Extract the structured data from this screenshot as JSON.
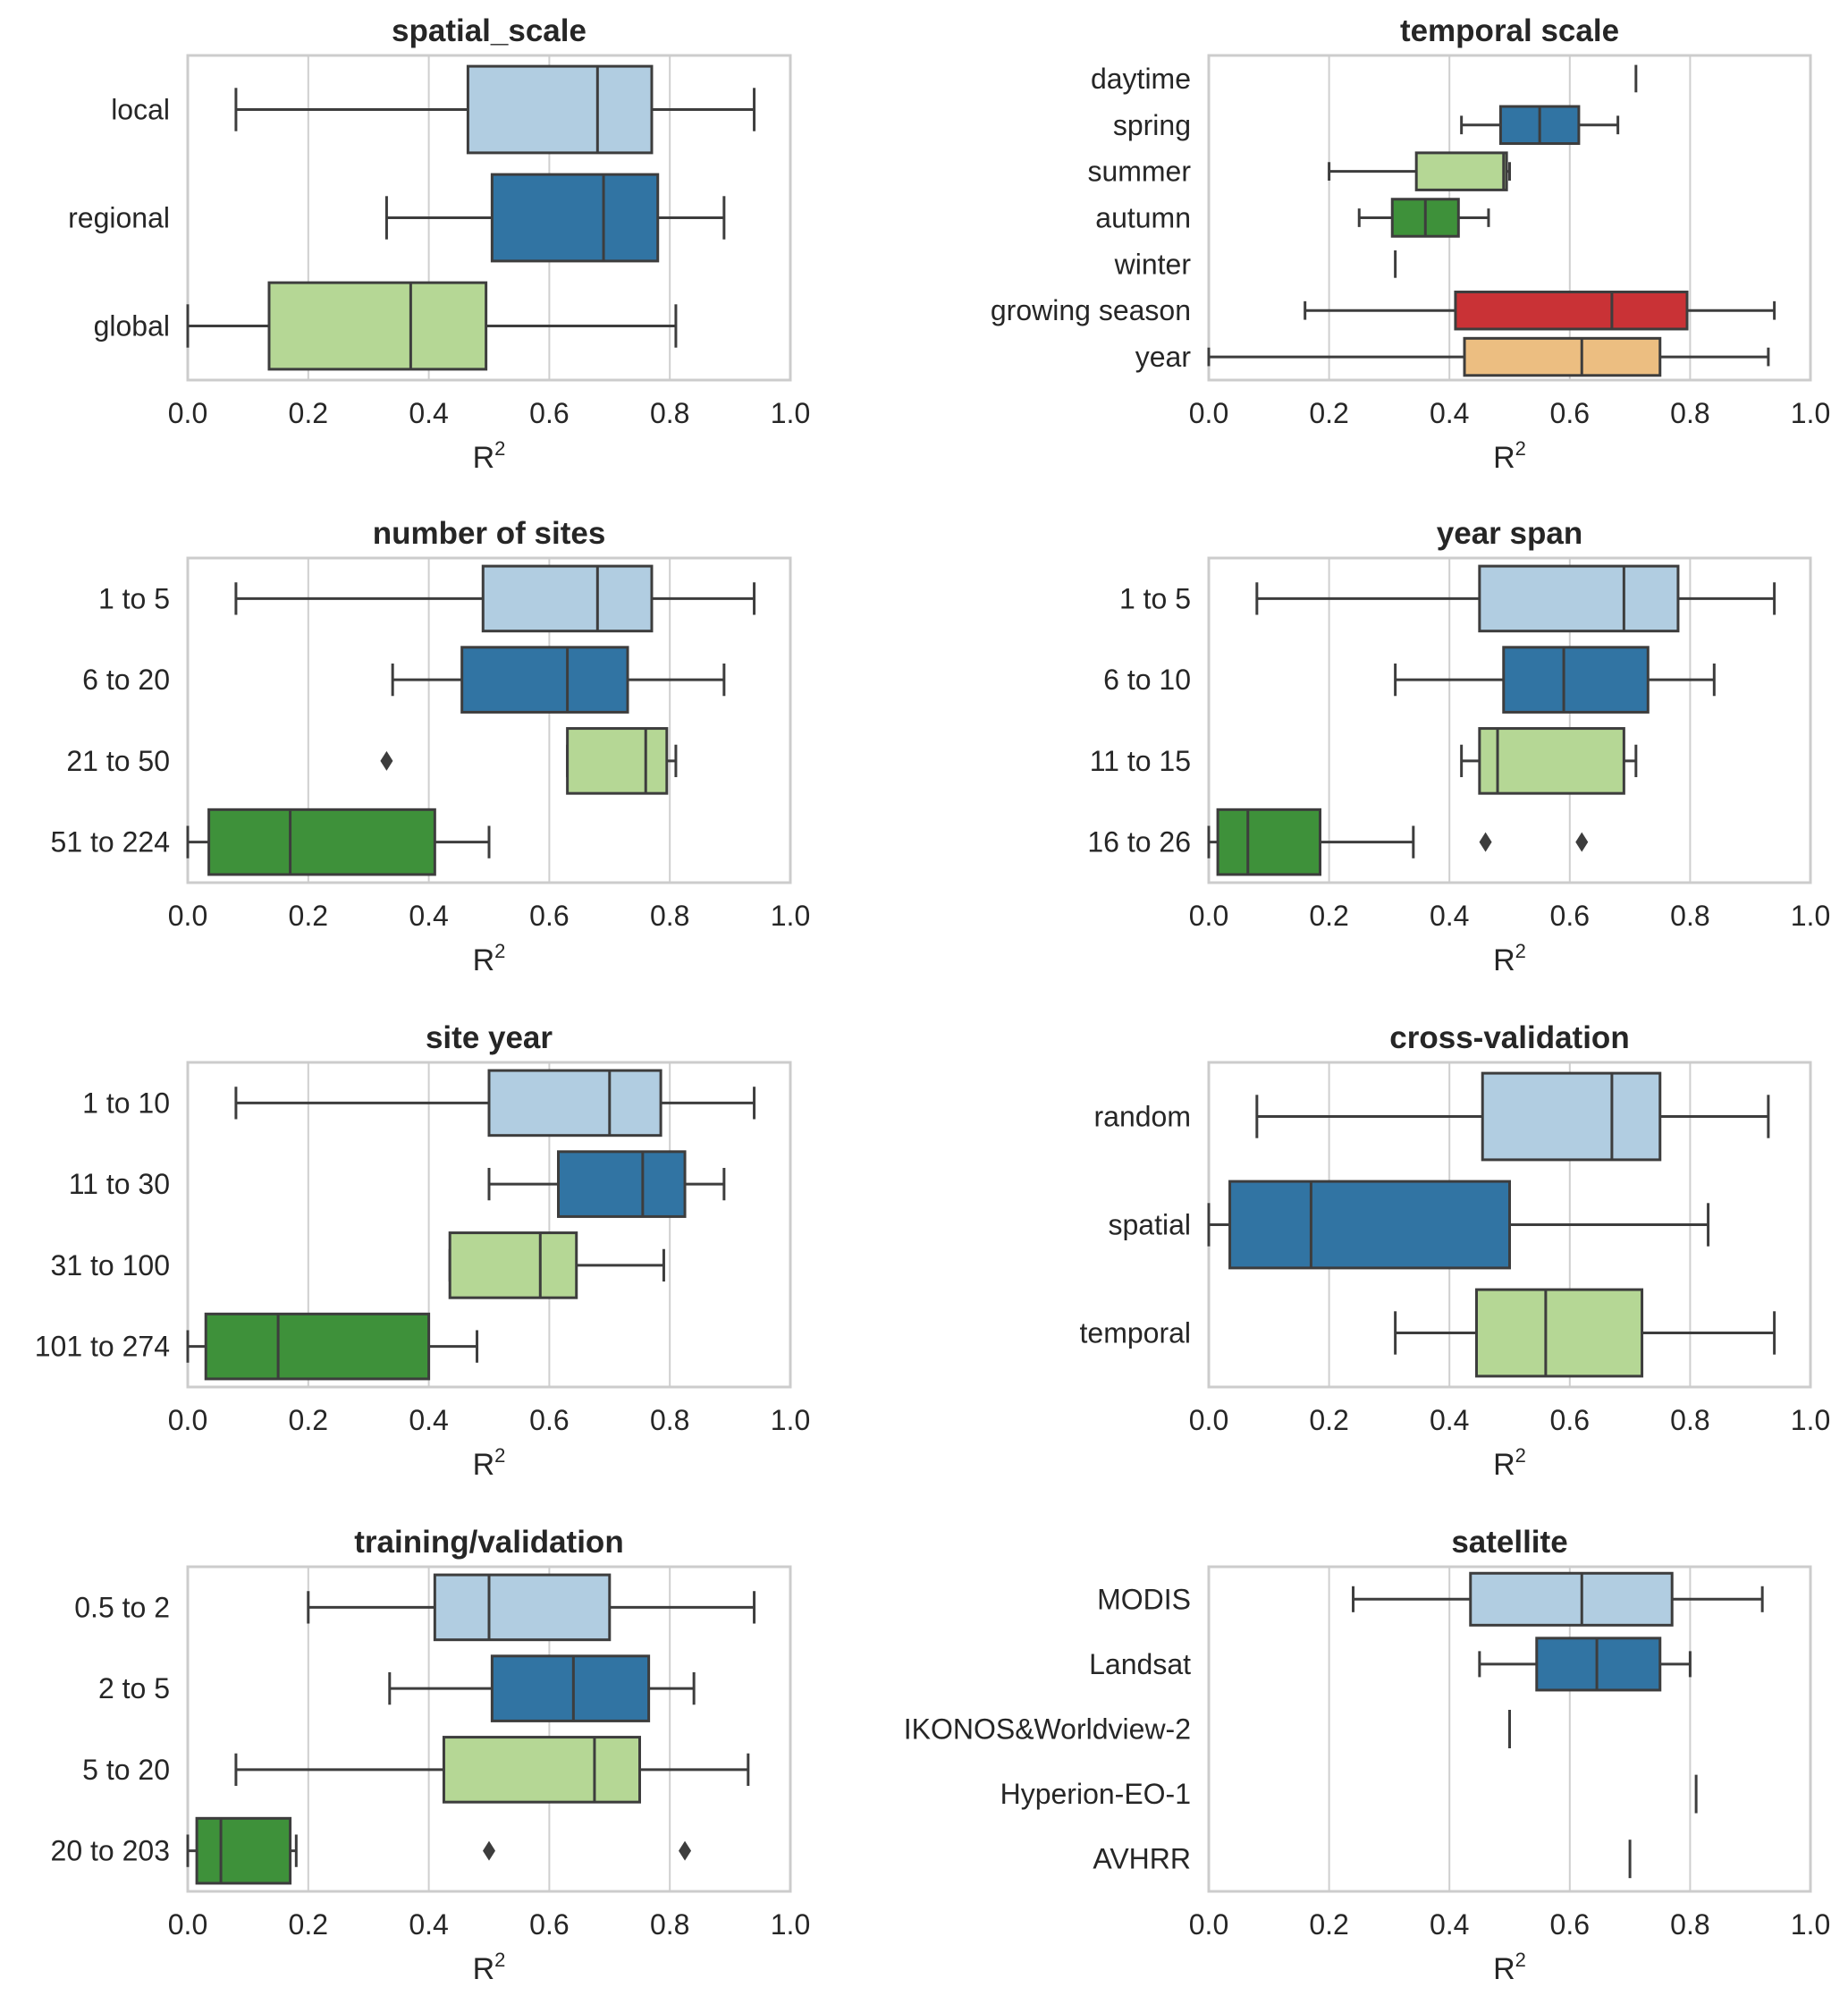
{
  "figure": {
    "palette": {
      "c0": "#b1cde1",
      "c1": "#3174a3",
      "c2": "#b5d795",
      "c3": "#3e913a",
      "c4": "#c93236",
      "c5": "#ecbe81",
      "edge": "#3d3d3d",
      "grid": "#cfcfcf",
      "frame": "#cccccc"
    }
  },
  "chart_data": [
    {
      "type": "box",
      "orientation": "horizontal",
      "title": "spatial_scale",
      "xlabel": "R²",
      "xlim": [
        0,
        1
      ],
      "xticks": [
        "0.0",
        "0.2",
        "0.4",
        "0.6",
        "0.8",
        "1.0"
      ],
      "grid": "vertical",
      "categories": [
        "local",
        "regional",
        "global"
      ],
      "boxes": [
        {
          "category": "local",
          "whisker_low": 0.08,
          "q1": 0.465,
          "median": 0.68,
          "q3": 0.77,
          "whisker_high": 0.94,
          "outliers": [],
          "color": "c0"
        },
        {
          "category": "regional",
          "whisker_low": 0.33,
          "q1": 0.505,
          "median": 0.69,
          "q3": 0.78,
          "whisker_high": 0.89,
          "outliers": [],
          "color": "c1"
        },
        {
          "category": "global",
          "whisker_low": 0.0,
          "q1": 0.135,
          "median": 0.37,
          "q3": 0.495,
          "whisker_high": 0.81,
          "outliers": [],
          "color": "c2"
        }
      ]
    },
    {
      "type": "box",
      "orientation": "horizontal",
      "title": "temporal scale",
      "xlabel": "R²",
      "xlim": [
        0,
        1
      ],
      "xticks": [
        "0.0",
        "0.2",
        "0.4",
        "0.6",
        "0.8",
        "1.0"
      ],
      "grid": "vertical",
      "categories": [
        "daytime",
        "spring",
        "summer",
        "autumn",
        "winter",
        "growing season",
        "year"
      ],
      "boxes": [
        {
          "category": "daytime",
          "whisker_low": 0.71,
          "q1": 0.71,
          "median": 0.71,
          "q3": 0.71,
          "whisker_high": 0.71,
          "outliers": [],
          "color": "c0"
        },
        {
          "category": "spring",
          "whisker_low": 0.42,
          "q1": 0.485,
          "median": 0.55,
          "q3": 0.615,
          "whisker_high": 0.68,
          "outliers": [],
          "color": "c1"
        },
        {
          "category": "summer",
          "whisker_low": 0.2,
          "q1": 0.345,
          "median": 0.49,
          "q3": 0.495,
          "whisker_high": 0.5,
          "outliers": [],
          "color": "c2"
        },
        {
          "category": "autumn",
          "whisker_low": 0.25,
          "q1": 0.305,
          "median": 0.36,
          "q3": 0.415,
          "whisker_high": 0.465,
          "outliers": [],
          "color": "c3"
        },
        {
          "category": "winter",
          "whisker_low": 0.31,
          "q1": 0.31,
          "median": 0.31,
          "q3": 0.31,
          "whisker_high": 0.31,
          "outliers": [],
          "color": "c0"
        },
        {
          "category": "growing season",
          "whisker_low": 0.16,
          "q1": 0.41,
          "median": 0.67,
          "q3": 0.795,
          "whisker_high": 0.94,
          "outliers": [],
          "color": "c4"
        },
        {
          "category": "year",
          "whisker_low": 0.0,
          "q1": 0.425,
          "median": 0.62,
          "q3": 0.75,
          "whisker_high": 0.93,
          "outliers": [],
          "color": "c5"
        }
      ]
    },
    {
      "type": "box",
      "orientation": "horizontal",
      "title": "number of sites",
      "xlabel": "R²",
      "xlim": [
        0,
        1
      ],
      "xticks": [
        "0.0",
        "0.2",
        "0.4",
        "0.6",
        "0.8",
        "1.0"
      ],
      "grid": "vertical",
      "categories": [
        "1 to 5",
        "6 to 20",
        "21 to 50",
        "51 to 224"
      ],
      "boxes": [
        {
          "category": "1 to 5",
          "whisker_low": 0.08,
          "q1": 0.49,
          "median": 0.68,
          "q3": 0.77,
          "whisker_high": 0.94,
          "outliers": [],
          "color": "c0"
        },
        {
          "category": "6 to 20",
          "whisker_low": 0.34,
          "q1": 0.455,
          "median": 0.63,
          "q3": 0.73,
          "whisker_high": 0.89,
          "outliers": [],
          "color": "c1"
        },
        {
          "category": "21 to 50",
          "whisker_low": 0.63,
          "q1": 0.63,
          "median": 0.76,
          "q3": 0.795,
          "whisker_high": 0.81,
          "outliers": [
            0.33
          ],
          "color": "c2"
        },
        {
          "category": "51 to 224",
          "whisker_low": 0.0,
          "q1": 0.035,
          "median": 0.17,
          "q3": 0.41,
          "whisker_high": 0.5,
          "outliers": [],
          "color": "c3"
        }
      ]
    },
    {
      "type": "box",
      "orientation": "horizontal",
      "title": "year span",
      "xlabel": "R²",
      "xlim": [
        0,
        1
      ],
      "xticks": [
        "0.0",
        "0.2",
        "0.4",
        "0.6",
        "0.8",
        "1.0"
      ],
      "grid": "vertical",
      "categories": [
        "1 to 5",
        "6 to 10",
        "11 to 15",
        "16 to 26"
      ],
      "boxes": [
        {
          "category": "1 to 5",
          "whisker_low": 0.08,
          "q1": 0.45,
          "median": 0.69,
          "q3": 0.78,
          "whisker_high": 0.94,
          "outliers": [],
          "color": "c0"
        },
        {
          "category": "6 to 10",
          "whisker_low": 0.31,
          "q1": 0.49,
          "median": 0.59,
          "q3": 0.73,
          "whisker_high": 0.84,
          "outliers": [],
          "color": "c1"
        },
        {
          "category": "11 to 15",
          "whisker_low": 0.42,
          "q1": 0.45,
          "median": 0.48,
          "q3": 0.69,
          "whisker_high": 0.71,
          "outliers": [],
          "color": "c2"
        },
        {
          "category": "16 to 26",
          "whisker_low": 0.0,
          "q1": 0.015,
          "median": 0.065,
          "q3": 0.185,
          "whisker_high": 0.34,
          "outliers": [
            0.46,
            0.62
          ],
          "color": "c3"
        }
      ]
    },
    {
      "type": "box",
      "orientation": "horizontal",
      "title": "site year",
      "xlabel": "R²",
      "xlim": [
        0,
        1
      ],
      "xticks": [
        "0.0",
        "0.2",
        "0.4",
        "0.6",
        "0.8",
        "1.0"
      ],
      "grid": "vertical",
      "categories": [
        "1 to 10",
        "11 to 30",
        "31 to 100",
        "101 to 274"
      ],
      "boxes": [
        {
          "category": "1 to 10",
          "whisker_low": 0.08,
          "q1": 0.5,
          "median": 0.7,
          "q3": 0.785,
          "whisker_high": 0.94,
          "outliers": [],
          "color": "c0"
        },
        {
          "category": "11 to 30",
          "whisker_low": 0.5,
          "q1": 0.615,
          "median": 0.755,
          "q3": 0.825,
          "whisker_high": 0.89,
          "outliers": [],
          "color": "c1"
        },
        {
          "category": "31 to 100",
          "whisker_low": 0.435,
          "q1": 0.435,
          "median": 0.585,
          "q3": 0.645,
          "whisker_high": 0.79,
          "outliers": [],
          "color": "c2"
        },
        {
          "category": "101 to 274",
          "whisker_low": 0.0,
          "q1": 0.03,
          "median": 0.15,
          "q3": 0.4,
          "whisker_high": 0.48,
          "outliers": [],
          "color": "c3"
        }
      ]
    },
    {
      "type": "box",
      "orientation": "horizontal",
      "title": "cross-validation",
      "xlabel": "R²",
      "xlim": [
        0,
        1
      ],
      "xticks": [
        "0.0",
        "0.2",
        "0.4",
        "0.6",
        "0.8",
        "1.0"
      ],
      "grid": "vertical",
      "categories": [
        "random",
        "spatial",
        "temporal"
      ],
      "boxes": [
        {
          "category": "random",
          "whisker_low": 0.08,
          "q1": 0.455,
          "median": 0.67,
          "q3": 0.75,
          "whisker_high": 0.93,
          "outliers": [],
          "color": "c0"
        },
        {
          "category": "spatial",
          "whisker_low": 0.0,
          "q1": 0.035,
          "median": 0.17,
          "q3": 0.5,
          "whisker_high": 0.83,
          "outliers": [],
          "color": "c1"
        },
        {
          "category": "temporal",
          "whisker_low": 0.31,
          "q1": 0.445,
          "median": 0.56,
          "q3": 0.72,
          "whisker_high": 0.94,
          "outliers": [],
          "color": "c2"
        }
      ]
    },
    {
      "type": "box",
      "orientation": "horizontal",
      "title": "training/validation",
      "xlabel": "R²",
      "xlim": [
        0,
        1
      ],
      "xticks": [
        "0.0",
        "0.2",
        "0.4",
        "0.6",
        "0.8",
        "1.0"
      ],
      "grid": "vertical",
      "categories": [
        "0.5 to 2",
        "2 to 5",
        "5 to 20",
        "20 to 203"
      ],
      "boxes": [
        {
          "category": "0.5 to 2",
          "whisker_low": 0.2,
          "q1": 0.41,
          "median": 0.5,
          "q3": 0.7,
          "whisker_high": 0.94,
          "outliers": [],
          "color": "c0"
        },
        {
          "category": "2 to 5",
          "whisker_low": 0.335,
          "q1": 0.505,
          "median": 0.64,
          "q3": 0.765,
          "whisker_high": 0.84,
          "outliers": [],
          "color": "c1"
        },
        {
          "category": "5 to 20",
          "whisker_low": 0.08,
          "q1": 0.425,
          "median": 0.675,
          "q3": 0.75,
          "whisker_high": 0.93,
          "outliers": [],
          "color": "c2"
        },
        {
          "category": "20 to 203",
          "whisker_low": 0.0,
          "q1": 0.015,
          "median": 0.055,
          "q3": 0.17,
          "whisker_high": 0.18,
          "outliers": [
            0.5,
            0.825
          ],
          "color": "c3"
        }
      ]
    },
    {
      "type": "box",
      "orientation": "horizontal",
      "title": "satellite",
      "xlabel": "R²",
      "xlim": [
        0,
        1
      ],
      "xticks": [
        "0.0",
        "0.2",
        "0.4",
        "0.6",
        "0.8",
        "1.0"
      ],
      "grid": "vertical",
      "categories": [
        "MODIS",
        "Landsat",
        "IKONOS&Worldview-2",
        "Hyperion-EO-1",
        "AVHRR"
      ],
      "boxes": [
        {
          "category": "MODIS",
          "whisker_low": 0.24,
          "q1": 0.435,
          "median": 0.62,
          "q3": 0.77,
          "whisker_high": 0.92,
          "outliers": [],
          "color": "c0"
        },
        {
          "category": "Landsat",
          "whisker_low": 0.45,
          "q1": 0.545,
          "median": 0.645,
          "q3": 0.75,
          "whisker_high": 0.8,
          "outliers": [],
          "color": "c1"
        },
        {
          "category": "IKONOS&Worldview-2",
          "whisker_low": 0.5,
          "q1": 0.5,
          "median": 0.5,
          "q3": 0.5,
          "whisker_high": 0.5,
          "outliers": [],
          "color": "c2"
        },
        {
          "category": "Hyperion-EO-1",
          "whisker_low": 0.81,
          "q1": 0.81,
          "median": 0.81,
          "q3": 0.81,
          "whisker_high": 0.81,
          "outliers": [],
          "color": "c3"
        },
        {
          "category": "AVHRR",
          "whisker_low": 0.7,
          "q1": 0.7,
          "median": 0.7,
          "q3": 0.7,
          "whisker_high": 0.7,
          "outliers": [],
          "color": "c4"
        }
      ]
    }
  ]
}
